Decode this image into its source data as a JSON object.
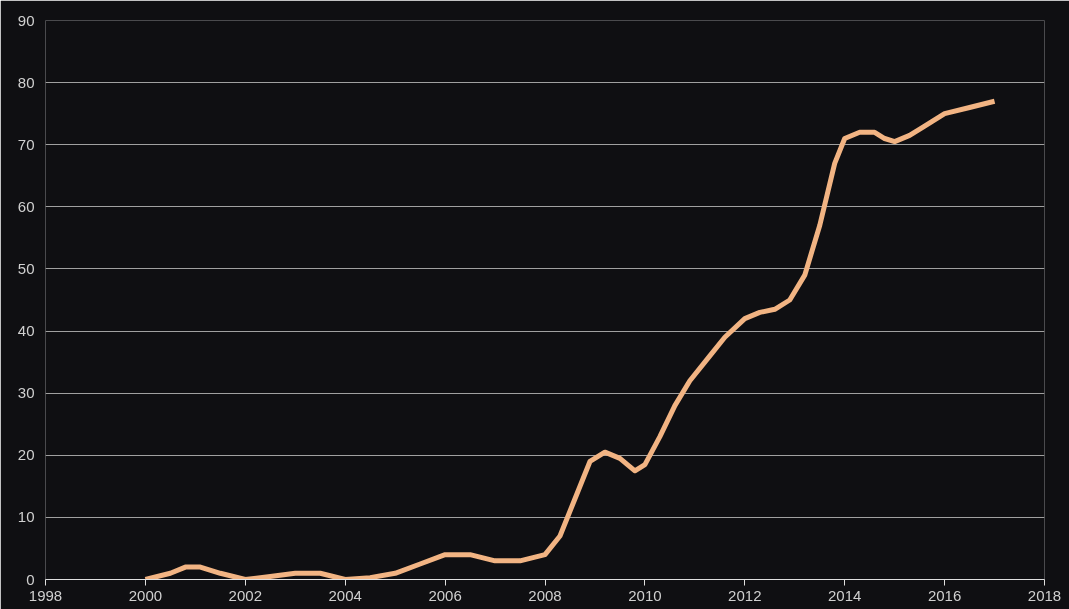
{
  "chart_data": {
    "type": "line",
    "x": [
      2000,
      2000.5,
      2000.8,
      2001.1,
      2001.5,
      2002,
      2002.5,
      2003,
      2003.5,
      2004,
      2004.5,
      2005,
      2005.5,
      2006,
      2006.5,
      2007,
      2007.5,
      2008,
      2008.3,
      2008.6,
      2008.9,
      2009.2,
      2009.5,
      2009.8,
      2010,
      2010.3,
      2010.6,
      2010.9,
      2011.3,
      2011.6,
      2012,
      2012.3,
      2012.6,
      2012.9,
      2013.2,
      2013.5,
      2013.8,
      2014,
      2014.3,
      2014.6,
      2014.8,
      2015,
      2015.3,
      2015.6,
      2016,
      2016.5,
      2017
    ],
    "series": [
      {
        "color": "#f2b483",
        "values": [
          0,
          1,
          2,
          2,
          1,
          0,
          0.5,
          1,
          1,
          0,
          0.3,
          1,
          2.5,
          4,
          4,
          3,
          3,
          4,
          7,
          13,
          19,
          20.5,
          19.5,
          17.5,
          18.5,
          23,
          28,
          32,
          36,
          39,
          42,
          43,
          43.5,
          45,
          49,
          57,
          67,
          71,
          72,
          72,
          71,
          70.5,
          71.5,
          73,
          75,
          76,
          77
        ]
      }
    ],
    "xlim": [
      1998,
      2018
    ],
    "xticks": [
      1998,
      2000,
      2002,
      2004,
      2006,
      2008,
      2010,
      2012,
      2014,
      2016,
      2018
    ],
    "ylim": [
      0,
      90
    ],
    "yticks": [
      0,
      10,
      20,
      30,
      40,
      50,
      60,
      70,
      80,
      90
    ],
    "grid": "y",
    "marker": "none",
    "line_style": "solid"
  }
}
